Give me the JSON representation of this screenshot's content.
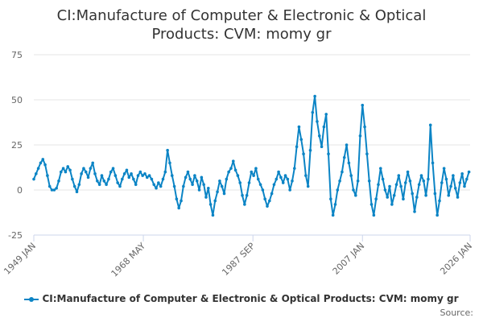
{
  "chart_data": {
    "type": "line",
    "title_line1": "CI:Manufacture of Computer & Electronic & Optical",
    "title_line2": "Products: CVM: momy gr",
    "xlabel": "",
    "ylabel": "",
    "ylim": [
      -25,
      75
    ],
    "xlim": [
      1949.0,
      2026.0
    ],
    "y_ticks": [
      "75",
      "50",
      "25",
      "0",
      "-25"
    ],
    "y_tick_values": [
      75,
      50,
      25,
      0,
      -25
    ],
    "x_ticks": [
      "1949 JAN",
      "1968 MAY",
      "1987 SEP",
      "2007 JAN",
      "2026 JAN"
    ],
    "x_tick_values": [
      1949.0,
      1968.33,
      1987.67,
      2007.0,
      2026.0
    ],
    "grid": true,
    "legend_position": "bottom",
    "series": [
      {
        "name": "CI:Manufacture of Computer & Electronic & Optical Products: CVM: momy gr",
        "color": "#0b84c5",
        "points": [
          [
            1949.0,
            6
          ],
          [
            1949.4,
            9
          ],
          [
            1949.8,
            12
          ],
          [
            1950.2,
            15
          ],
          [
            1950.6,
            17
          ],
          [
            1951.0,
            14
          ],
          [
            1951.4,
            8
          ],
          [
            1951.8,
            2
          ],
          [
            1952.2,
            0
          ],
          [
            1952.6,
            0
          ],
          [
            1953.0,
            1
          ],
          [
            1953.4,
            5
          ],
          [
            1953.8,
            10
          ],
          [
            1954.2,
            12
          ],
          [
            1954.6,
            10
          ],
          [
            1955.0,
            13
          ],
          [
            1955.4,
            11
          ],
          [
            1955.8,
            6
          ],
          [
            1956.2,
            2
          ],
          [
            1956.6,
            -1
          ],
          [
            1957.0,
            3
          ],
          [
            1957.4,
            9
          ],
          [
            1957.8,
            12
          ],
          [
            1958.2,
            10
          ],
          [
            1958.6,
            7
          ],
          [
            1959.0,
            12
          ],
          [
            1959.4,
            15
          ],
          [
            1959.8,
            9
          ],
          [
            1960.2,
            5
          ],
          [
            1960.6,
            3
          ],
          [
            1961.0,
            8
          ],
          [
            1961.4,
            5
          ],
          [
            1961.8,
            3
          ],
          [
            1962.2,
            6
          ],
          [
            1962.6,
            10
          ],
          [
            1963.0,
            12
          ],
          [
            1963.4,
            8
          ],
          [
            1963.8,
            4
          ],
          [
            1964.2,
            2
          ],
          [
            1964.6,
            6
          ],
          [
            1965.0,
            9
          ],
          [
            1965.4,
            11
          ],
          [
            1965.8,
            7
          ],
          [
            1966.2,
            9
          ],
          [
            1966.6,
            6
          ],
          [
            1967.0,
            3
          ],
          [
            1967.4,
            8
          ],
          [
            1967.8,
            10
          ],
          [
            1968.2,
            8
          ],
          [
            1968.6,
            9
          ],
          [
            1969.0,
            7
          ],
          [
            1969.4,
            8
          ],
          [
            1969.8,
            6
          ],
          [
            1970.2,
            3
          ],
          [
            1970.6,
            1
          ],
          [
            1971.0,
            4
          ],
          [
            1971.4,
            2
          ],
          [
            1971.8,
            6
          ],
          [
            1972.2,
            10
          ],
          [
            1972.6,
            22
          ],
          [
            1973.0,
            15
          ],
          [
            1973.4,
            8
          ],
          [
            1973.8,
            2
          ],
          [
            1974.2,
            -5
          ],
          [
            1974.6,
            -10
          ],
          [
            1975.0,
            -6
          ],
          [
            1975.4,
            2
          ],
          [
            1975.8,
            7
          ],
          [
            1976.2,
            10
          ],
          [
            1976.6,
            6
          ],
          [
            1977.0,
            3
          ],
          [
            1977.4,
            8
          ],
          [
            1977.8,
            5
          ],
          [
            1978.2,
            0
          ],
          [
            1978.6,
            7
          ],
          [
            1979.0,
            3
          ],
          [
            1979.4,
            -4
          ],
          [
            1979.8,
            1
          ],
          [
            1980.2,
            -8
          ],
          [
            1980.6,
            -14
          ],
          [
            1981.0,
            -6
          ],
          [
            1981.4,
            -1
          ],
          [
            1981.8,
            5
          ],
          [
            1982.2,
            2
          ],
          [
            1982.6,
            -2
          ],
          [
            1983.0,
            6
          ],
          [
            1983.4,
            10
          ],
          [
            1983.8,
            12
          ],
          [
            1984.2,
            16
          ],
          [
            1984.6,
            11
          ],
          [
            1985.0,
            8
          ],
          [
            1985.4,
            4
          ],
          [
            1985.8,
            -3
          ],
          [
            1986.2,
            -8
          ],
          [
            1986.6,
            -3
          ],
          [
            1987.0,
            4
          ],
          [
            1987.4,
            10
          ],
          [
            1987.8,
            8
          ],
          [
            1988.2,
            12
          ],
          [
            1988.6,
            6
          ],
          [
            1989.0,
            3
          ],
          [
            1989.4,
            0
          ],
          [
            1989.8,
            -5
          ],
          [
            1990.2,
            -9
          ],
          [
            1990.6,
            -6
          ],
          [
            1991.0,
            -2
          ],
          [
            1991.4,
            3
          ],
          [
            1991.8,
            6
          ],
          [
            1992.2,
            10
          ],
          [
            1992.6,
            7
          ],
          [
            1993.0,
            4
          ],
          [
            1993.4,
            8
          ],
          [
            1993.8,
            6
          ],
          [
            1994.2,
            0
          ],
          [
            1994.6,
            5
          ],
          [
            1995.0,
            12
          ],
          [
            1995.4,
            24
          ],
          [
            1995.8,
            35
          ],
          [
            1996.2,
            28
          ],
          [
            1996.6,
            20
          ],
          [
            1997.0,
            8
          ],
          [
            1997.4,
            2
          ],
          [
            1997.8,
            22
          ],
          [
            1998.2,
            43
          ],
          [
            1998.6,
            52
          ],
          [
            1999.0,
            38
          ],
          [
            1999.4,
            30
          ],
          [
            1999.8,
            24
          ],
          [
            2000.2,
            35
          ],
          [
            2000.6,
            42
          ],
          [
            2001.0,
            20
          ],
          [
            2001.4,
            -5
          ],
          [
            2001.8,
            -14
          ],
          [
            2002.2,
            -8
          ],
          [
            2002.6,
            0
          ],
          [
            2003.0,
            5
          ],
          [
            2003.4,
            10
          ],
          [
            2003.8,
            18
          ],
          [
            2004.2,
            25
          ],
          [
            2004.6,
            15
          ],
          [
            2005.0,
            8
          ],
          [
            2005.4,
            0
          ],
          [
            2005.8,
            -3
          ],
          [
            2006.2,
            5
          ],
          [
            2006.6,
            30
          ],
          [
            2007.0,
            47
          ],
          [
            2007.4,
            35
          ],
          [
            2007.8,
            20
          ],
          [
            2008.2,
            5
          ],
          [
            2008.6,
            -8
          ],
          [
            2009.0,
            -14
          ],
          [
            2009.4,
            -5
          ],
          [
            2009.8,
            3
          ],
          [
            2010.2,
            12
          ],
          [
            2010.6,
            6
          ],
          [
            2011.0,
            0
          ],
          [
            2011.4,
            -4
          ],
          [
            2011.8,
            2
          ],
          [
            2012.2,
            -8
          ],
          [
            2012.6,
            -3
          ],
          [
            2013.0,
            3
          ],
          [
            2013.4,
            8
          ],
          [
            2013.8,
            2
          ],
          [
            2014.2,
            -5
          ],
          [
            2014.6,
            4
          ],
          [
            2015.0,
            10
          ],
          [
            2015.4,
            5
          ],
          [
            2015.8,
            -2
          ],
          [
            2016.2,
            -12
          ],
          [
            2016.6,
            -4
          ],
          [
            2017.0,
            3
          ],
          [
            2017.4,
            8
          ],
          [
            2017.8,
            5
          ],
          [
            2018.2,
            -3
          ],
          [
            2018.6,
            6
          ],
          [
            2019.0,
            36
          ],
          [
            2019.4,
            15
          ],
          [
            2019.8,
            -2
          ],
          [
            2020.2,
            -14
          ],
          [
            2020.6,
            -6
          ],
          [
            2021.0,
            4
          ],
          [
            2021.4,
            12
          ],
          [
            2021.8,
            6
          ],
          [
            2022.2,
            -3
          ],
          [
            2022.6,
            2
          ],
          [
            2023.0,
            8
          ],
          [
            2023.4,
            1
          ],
          [
            2023.8,
            -4
          ],
          [
            2024.2,
            4
          ],
          [
            2024.6,
            9
          ],
          [
            2025.0,
            2
          ],
          [
            2025.4,
            6
          ],
          [
            2025.8,
            10
          ]
        ]
      }
    ],
    "source_label": "Source:"
  }
}
